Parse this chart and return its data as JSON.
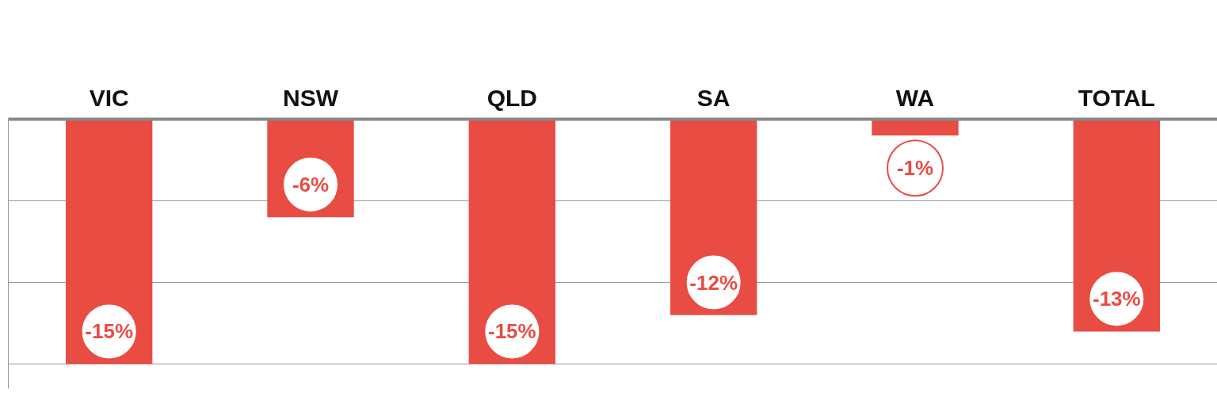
{
  "chart_data": {
    "type": "bar",
    "categories": [
      "VIC",
      "NSW",
      "QLD",
      "SA",
      "WA",
      "TOTAL"
    ],
    "values": [
      -15,
      -6,
      -15,
      -12,
      -1,
      -13
    ],
    "color": "#e94c43",
    "value_labels": [
      "-15%",
      "-6%",
      "-15%",
      "-12%",
      "-1%",
      "-13%"
    ],
    "ylim": [
      -16.5,
      0
    ],
    "yticks": [
      {
        "value": -5,
        "label": null
      },
      {
        "value": -10,
        "label": null
      },
      {
        "value": -15,
        "label": null
      }
    ],
    "grid": "y",
    "tick_labels": "x"
  }
}
